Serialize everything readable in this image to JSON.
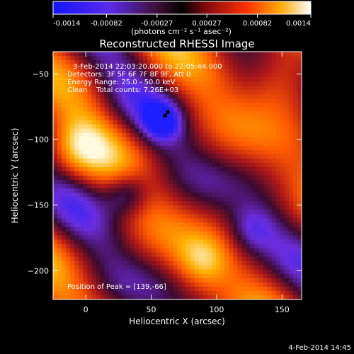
{
  "colorbar": {
    "ticks": [
      "-0.0014",
      "-0.00082",
      "-0.00027",
      "0.00027",
      "0.00082",
      "0.0014"
    ],
    "units_label": "(photons cm⁻² s⁻¹ asec⁻²)",
    "range": [
      -0.0014,
      0.0014
    ]
  },
  "chart_data": {
    "type": "heatmap",
    "title": "Reconstructed RHESSI Image",
    "xlabel": "Heliocentric X (arcsec)",
    "ylabel": "Heliocentric Y (arcsec)",
    "xlim": [
      -25,
      165
    ],
    "ylim": [
      -222,
      -33
    ],
    "x_ticks": [
      0,
      50,
      100,
      150
    ],
    "y_ticks": [
      -50,
      -100,
      -150,
      -200
    ],
    "x_tick_labels": [
      "0",
      "50",
      "100",
      "150"
    ],
    "y_tick_labels": [
      "−50",
      "−100",
      "−150",
      "−200"
    ],
    "colormap": [
      "#1e1eff",
      "#6b2ee0",
      "#3a0a30",
      "#b01818",
      "#ff5a00",
      "#ffb000",
      "#fffbe0"
    ],
    "annotations": [
      "3-Feb-2014 22:03:20.000 to 22:05:44.000",
      "Detectors: 3F 5F 6F 7F 8F 9F, Att 0",
      "Energy Range: 25.0 - 50.0 keV",
      "Clean    Total counts: 7.26E+03"
    ],
    "peak_label": "Position of Peak = [139,-66]",
    "peak_position": [
      139,
      -66
    ],
    "grid": false
  },
  "footer": {
    "date_stamp": "4-Feb-2014 14:45"
  }
}
